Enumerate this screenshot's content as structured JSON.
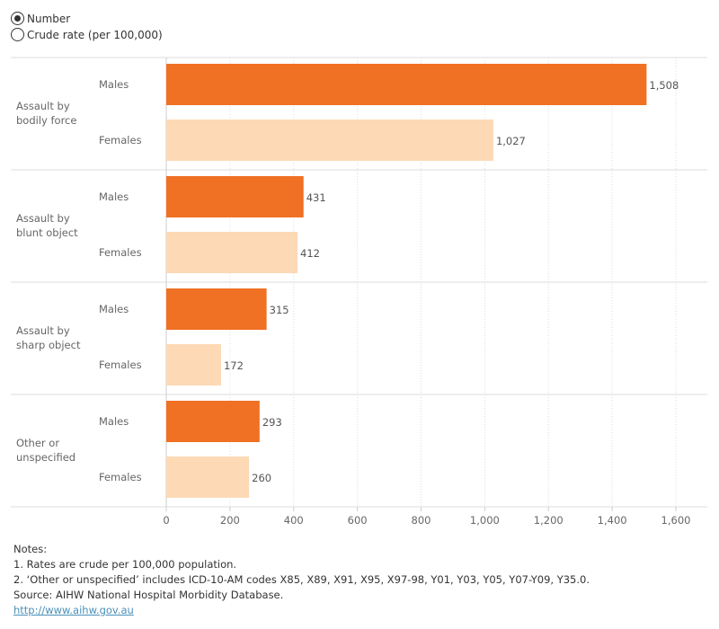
{
  "controls": {
    "options": [
      {
        "label": "Number",
        "selected": true
      },
      {
        "label": "Crude rate (per 100,000)",
        "selected": false
      }
    ]
  },
  "chart_data": {
    "type": "bar",
    "orientation": "horizontal",
    "categories": [
      "Assault by bodily force",
      "Assault by blunt object",
      "Assault by sharp object",
      "Other or unspecified"
    ],
    "category_lines": [
      [
        "Assault by",
        "bodily force"
      ],
      [
        "Assault by",
        "blunt object"
      ],
      [
        "Assault by",
        "sharp object"
      ],
      [
        "Other or",
        "unspecified"
      ]
    ],
    "series": [
      {
        "name": "Males",
        "color": "#f07024",
        "values": [
          1508,
          431,
          315,
          293
        ]
      },
      {
        "name": "Females",
        "color": "#fdd9b5",
        "values": [
          1027,
          412,
          172,
          260
        ]
      }
    ],
    "value_labels": {
      "Males": [
        "1,508",
        "431",
        "315",
        "293"
      ],
      "Females": [
        "1,027",
        "412",
        "172",
        "260"
      ]
    },
    "xlim": [
      0,
      1700
    ],
    "xticks": [
      0,
      200,
      400,
      600,
      800,
      1000,
      1200,
      1400,
      1600
    ],
    "xtick_labels": [
      "0",
      "200",
      "400",
      "600",
      "800",
      "1,000",
      "1,200",
      "1,400",
      "1,600"
    ],
    "grid": "vertical dotted"
  },
  "notes": {
    "heading": "Notes:",
    "lines": [
      "1. Rates are crude per 100,000 population.",
      "2. ‘Other or unspecified’ includes ICD-10-AM codes X85, X89, X91, X95, X97-98, Y01, Y03, Y05, Y07-Y09, Y35.0.",
      "Source: AIHW National Hospital Morbidity Database."
    ],
    "link": "http://www.aihw.gov.au"
  }
}
